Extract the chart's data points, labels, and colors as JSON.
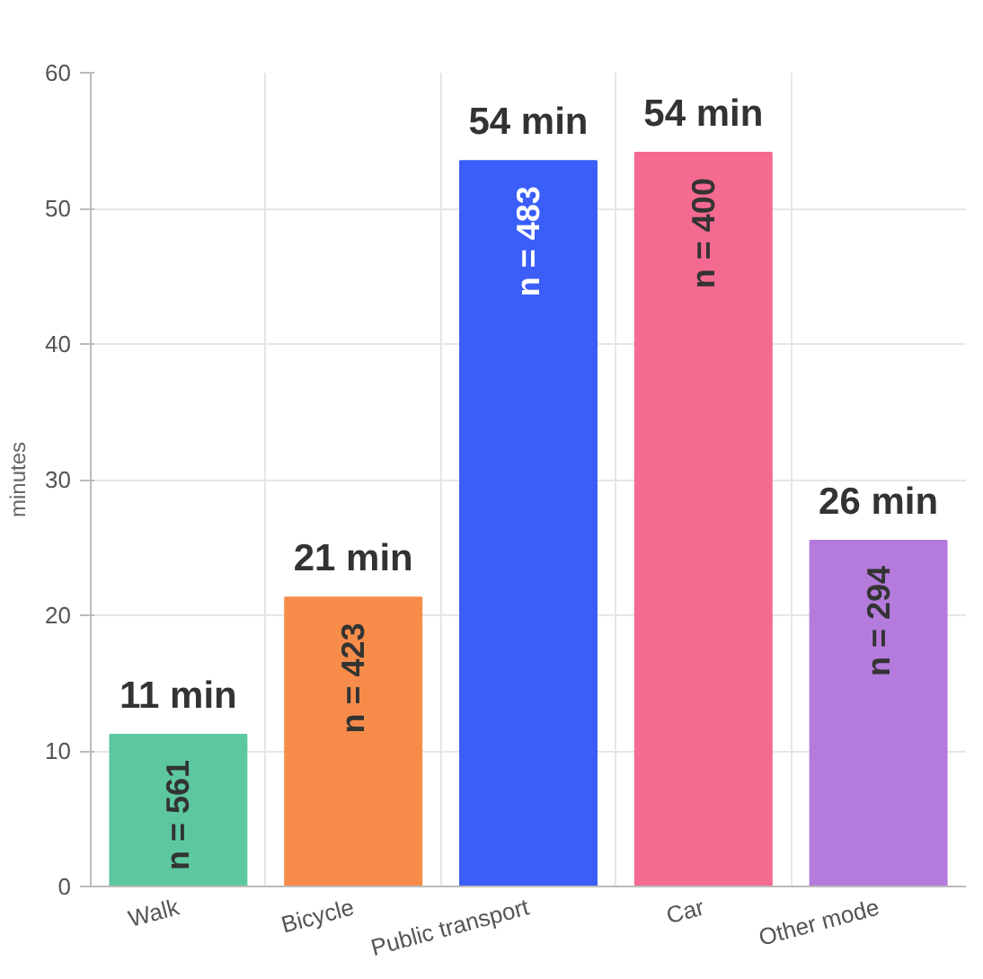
{
  "chart_data": {
    "type": "bar",
    "ylabel": "minutes",
    "categories": [
      "Walk",
      "Bicycle",
      "Public transport",
      "Car",
      "Other mode"
    ],
    "values": [
      11.2,
      21.3,
      53.5,
      54.1,
      25.5
    ],
    "colors": [
      "#5dc8a0",
      "#f78c4a",
      "#3a5ef7",
      "#f46a90",
      "#b57bdc"
    ],
    "value_labels": [
      "11 min",
      "21 min",
      "54 min",
      "54 min",
      "26 min"
    ],
    "annotations": [
      {
        "text": "n = 561",
        "x": "Walk",
        "y": 11.2
      },
      {
        "text": "n = 423",
        "x": "Bicycle",
        "y": 21.3
      },
      {
        "text": "n = 483",
        "x": "Public transport",
        "y": 53.5
      },
      {
        "text": "n = 400",
        "x": "Car",
        "y": 54.1
      },
      {
        "text": "n = 294",
        "x": "Other mode",
        "y": 25.5
      }
    ],
    "ylim": [
      0,
      60
    ],
    "yticks": [
      0,
      10,
      20,
      30,
      40,
      50,
      60
    ],
    "grid": true
  }
}
